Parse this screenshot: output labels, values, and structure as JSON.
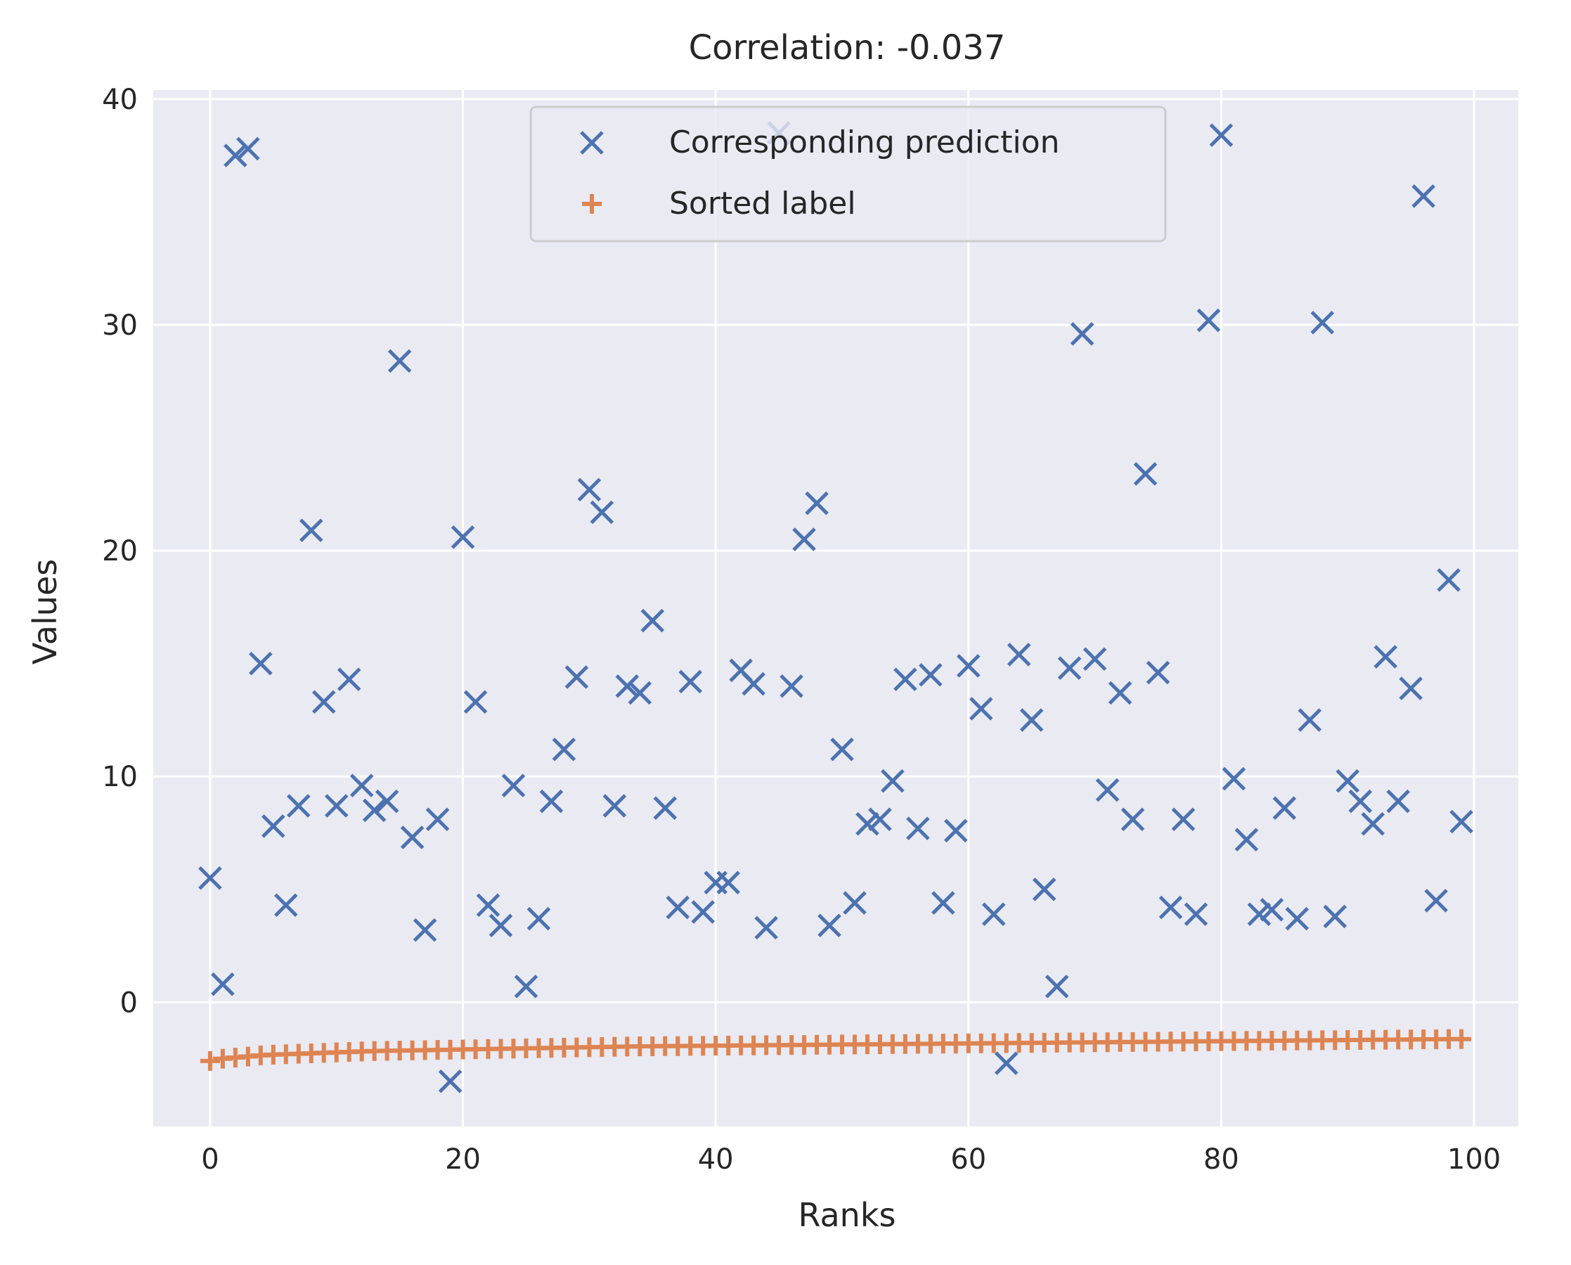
{
  "chart_data": {
    "type": "scatter",
    "title": "Correlation: -0.037",
    "xlabel": "Ranks",
    "ylabel": "Values",
    "xlim": [
      -4.5,
      103.5
    ],
    "ylim": [
      -5.5,
      40.4
    ],
    "xticks": [
      0,
      20,
      40,
      60,
      80,
      100
    ],
    "yticks": [
      0,
      10,
      20,
      30,
      40
    ],
    "xtick_labels": [
      "0",
      "20",
      "40",
      "60",
      "80",
      "100"
    ],
    "ytick_labels": [
      "0",
      "10",
      "20",
      "30",
      "40"
    ],
    "grid": true,
    "legend_position": "upper center",
    "legend_labels": [
      "Corresponding prediction",
      "Sorted label"
    ],
    "series": [
      {
        "name": "Corresponding prediction",
        "marker": "x",
        "color": "#4c72b0",
        "x": [
          0,
          1,
          2,
          3,
          4,
          5,
          6,
          7,
          8,
          9,
          10,
          11,
          12,
          13,
          14,
          15,
          16,
          17,
          18,
          19,
          20,
          21,
          22,
          23,
          24,
          25,
          26,
          27,
          28,
          29,
          30,
          31,
          32,
          33,
          34,
          35,
          36,
          37,
          38,
          39,
          40,
          41,
          42,
          43,
          44,
          45,
          46,
          47,
          48,
          49,
          50,
          51,
          52,
          53,
          54,
          55,
          56,
          57,
          58,
          59,
          60,
          61,
          62,
          63,
          64,
          65,
          66,
          67,
          68,
          69,
          70,
          71,
          72,
          73,
          74,
          75,
          76,
          77,
          78,
          79,
          80,
          81,
          82,
          83,
          84,
          85,
          86,
          87,
          88,
          89,
          90,
          91,
          92,
          93,
          94,
          95,
          96,
          97,
          98,
          99
        ],
        "y": [
          5.5,
          0.8,
          37.5,
          37.8,
          15.0,
          7.8,
          4.3,
          8.7,
          20.9,
          13.3,
          8.7,
          14.3,
          9.6,
          8.5,
          8.9,
          28.4,
          7.3,
          3.2,
          8.1,
          -3.5,
          20.6,
          13.3,
          4.3,
          3.4,
          9.6,
          0.7,
          3.7,
          8.9,
          11.2,
          14.4,
          22.7,
          21.7,
          8.7,
          14.0,
          13.7,
          16.9,
          8.6,
          4.2,
          14.2,
          4.0,
          5.3,
          5.3,
          14.7,
          14.1,
          3.3,
          38.5,
          14.0,
          20.5,
          22.1,
          3.4,
          11.2,
          4.4,
          7.9,
          8.1,
          9.8,
          14.3,
          7.7,
          14.5,
          4.4,
          7.6,
          14.9,
          13.0,
          3.9,
          -2.7,
          15.4,
          12.5,
          5.0,
          0.7,
          14.8,
          29.6,
          15.2,
          9.4,
          13.7,
          8.1,
          23.4,
          14.6,
          4.2,
          8.1,
          3.9,
          30.2,
          38.4,
          9.9,
          7.2,
          3.9,
          4.1,
          8.6,
          3.7,
          12.5,
          30.1,
          3.8,
          9.8,
          8.9,
          7.9,
          15.3,
          8.9,
          13.9,
          35.7,
          4.5,
          18.7,
          8.0
        ]
      },
      {
        "name": "Sorted label",
        "marker": "+",
        "color": "#dd8452",
        "x": [
          0,
          1,
          2,
          3,
          4,
          5,
          6,
          7,
          8,
          9,
          10,
          11,
          12,
          13,
          14,
          15,
          16,
          17,
          18,
          19,
          20,
          21,
          22,
          23,
          24,
          25,
          26,
          27,
          28,
          29,
          30,
          31,
          32,
          33,
          34,
          35,
          36,
          37,
          38,
          39,
          40,
          41,
          42,
          43,
          44,
          45,
          46,
          47,
          48,
          49,
          50,
          51,
          52,
          53,
          54,
          55,
          56,
          57,
          58,
          59,
          60,
          61,
          62,
          63,
          64,
          65,
          66,
          67,
          68,
          69,
          70,
          71,
          72,
          73,
          74,
          75,
          76,
          77,
          78,
          79,
          80,
          81,
          82,
          83,
          84,
          85,
          86,
          87,
          88,
          89,
          90,
          91,
          92,
          93,
          94,
          95,
          96,
          97,
          98,
          99
        ],
        "y": [
          -2.6,
          -2.5,
          -2.45,
          -2.4,
          -2.35,
          -2.32,
          -2.3,
          -2.28,
          -2.26,
          -2.24,
          -2.22,
          -2.2,
          -2.18,
          -2.16,
          -2.15,
          -2.14,
          -2.13,
          -2.12,
          -2.11,
          -2.1,
          -2.09,
          -2.08,
          -2.07,
          -2.06,
          -2.05,
          -2.04,
          -2.03,
          -2.02,
          -2.01,
          -2.0,
          -1.99,
          -1.98,
          -1.97,
          -1.96,
          -1.95,
          -1.95,
          -1.94,
          -1.94,
          -1.93,
          -1.93,
          -1.92,
          -1.92,
          -1.91,
          -1.91,
          -1.9,
          -1.9,
          -1.89,
          -1.89,
          -1.88,
          -1.88,
          -1.87,
          -1.87,
          -1.86,
          -1.86,
          -1.85,
          -1.85,
          -1.84,
          -1.84,
          -1.83,
          -1.83,
          -1.82,
          -1.82,
          -1.81,
          -1.81,
          -1.8,
          -1.8,
          -1.79,
          -1.79,
          -1.78,
          -1.78,
          -1.77,
          -1.77,
          -1.76,
          -1.76,
          -1.75,
          -1.75,
          -1.74,
          -1.74,
          -1.73,
          -1.73,
          -1.72,
          -1.72,
          -1.71,
          -1.71,
          -1.7,
          -1.7,
          -1.69,
          -1.69,
          -1.68,
          -1.68,
          -1.67,
          -1.67,
          -1.66,
          -1.66,
          -1.65,
          -1.65,
          -1.64,
          -1.64,
          -1.63,
          -1.63
        ]
      }
    ]
  }
}
